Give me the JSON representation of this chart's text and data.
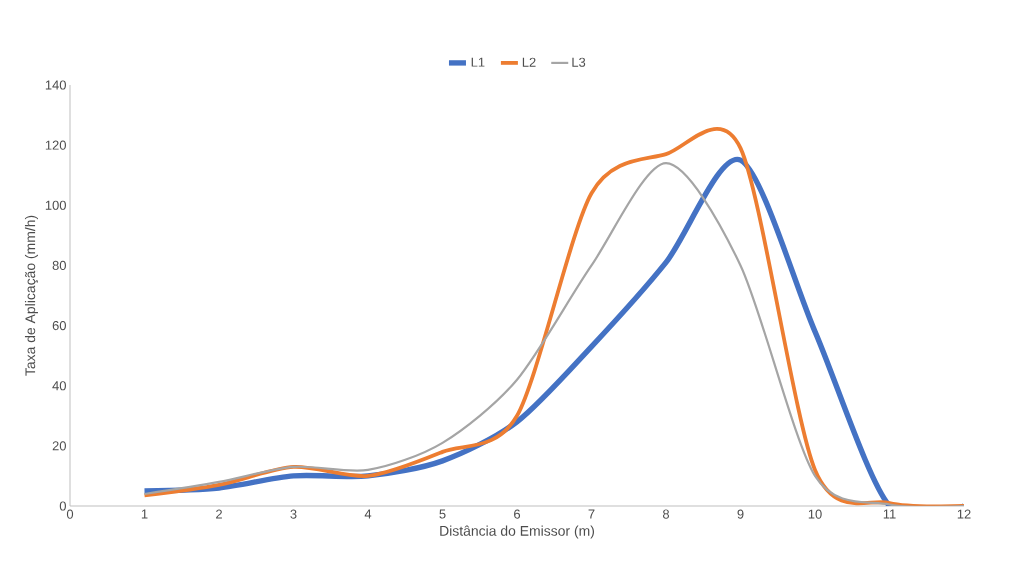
{
  "chart_data": {
    "type": "line",
    "xlabel": "Distância do Emissor (m)",
    "ylabel": "Taxa de Aplicação (mm/h)",
    "x": [
      1,
      2,
      3,
      4,
      5,
      6,
      7,
      8,
      9,
      10,
      11,
      12
    ],
    "series": [
      {
        "name": "L1",
        "color": "#4472c4",
        "values": [
          5,
          6,
          10,
          10,
          15,
          28,
          53,
          81,
          115,
          58,
          0,
          0
        ]
      },
      {
        "name": "L2",
        "color": "#ed7d31",
        "values": [
          3.5,
          7,
          13,
          10,
          18,
          30,
          104,
          117,
          119,
          12,
          1,
          0
        ]
      },
      {
        "name": "L3",
        "color": "#a5a5a5",
        "values": [
          4,
          8,
          13,
          12,
          21,
          42,
          80,
          114,
          80,
          10,
          0.5,
          0
        ]
      }
    ],
    "xlim": [
      0,
      12
    ],
    "ylim": [
      0,
      140
    ],
    "xticks": [
      0,
      1,
      2,
      3,
      4,
      5,
      6,
      7,
      8,
      9,
      10,
      11,
      12
    ],
    "yticks": [
      0,
      20,
      40,
      60,
      80,
      100,
      120,
      140
    ],
    "legend": "top",
    "grid": false,
    "marker": "none",
    "line_style": "solid"
  }
}
